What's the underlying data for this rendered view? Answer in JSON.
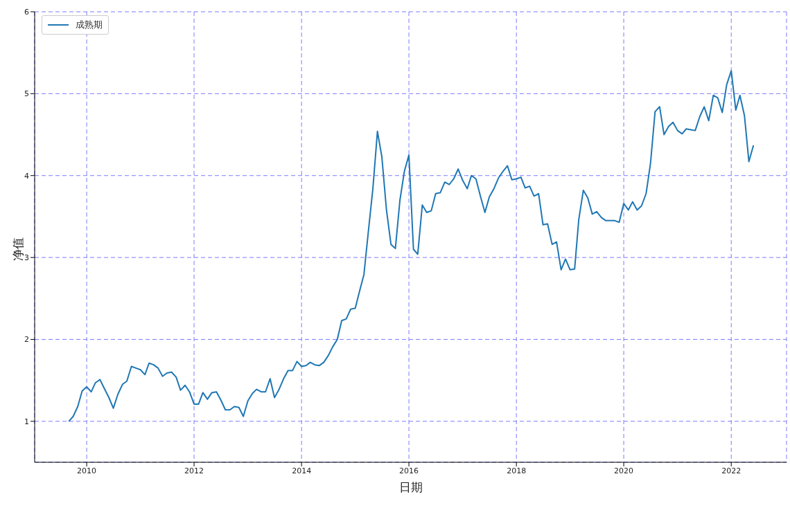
{
  "chart_data": {
    "type": "line",
    "xlabel": "日期",
    "ylabel": "净值",
    "x": [
      "2009-09",
      "2009-10",
      "2009-11",
      "2009-12",
      "2010-01",
      "2010-02",
      "2010-03",
      "2010-04",
      "2010-05",
      "2010-06",
      "2010-07",
      "2010-08",
      "2010-09",
      "2010-10",
      "2010-11",
      "2010-12",
      "2011-01",
      "2011-02",
      "2011-03",
      "2011-04",
      "2011-05",
      "2011-06",
      "2011-07",
      "2011-08",
      "2011-09",
      "2011-10",
      "2011-11",
      "2011-12",
      "2012-01",
      "2012-02",
      "2012-03",
      "2012-04",
      "2012-05",
      "2012-06",
      "2012-07",
      "2012-08",
      "2012-09",
      "2012-10",
      "2012-11",
      "2012-12",
      "2013-01",
      "2013-02",
      "2013-03",
      "2013-04",
      "2013-05",
      "2013-06",
      "2013-07",
      "2013-08",
      "2013-09",
      "2013-10",
      "2013-11",
      "2013-12",
      "2014-01",
      "2014-02",
      "2014-03",
      "2014-04",
      "2014-05",
      "2014-06",
      "2014-07",
      "2014-08",
      "2014-09",
      "2014-10",
      "2014-11",
      "2014-12",
      "2015-01",
      "2015-02",
      "2015-03",
      "2015-04",
      "2015-05",
      "2015-06",
      "2015-07",
      "2015-08",
      "2015-09",
      "2015-10",
      "2015-11",
      "2015-12",
      "2016-01",
      "2016-02",
      "2016-03",
      "2016-04",
      "2016-05",
      "2016-06",
      "2016-07",
      "2016-08",
      "2016-09",
      "2016-10",
      "2016-11",
      "2016-12",
      "2017-01",
      "2017-02",
      "2017-03",
      "2017-04",
      "2017-05",
      "2017-06",
      "2017-07",
      "2017-08",
      "2017-09",
      "2017-10",
      "2017-11",
      "2017-12",
      "2018-01",
      "2018-02",
      "2018-03",
      "2018-04",
      "2018-05",
      "2018-06",
      "2018-07",
      "2018-08",
      "2018-09",
      "2018-10",
      "2018-11",
      "2018-12",
      "2019-01",
      "2019-02",
      "2019-03",
      "2019-04",
      "2019-05",
      "2019-06",
      "2019-07",
      "2019-08",
      "2019-09",
      "2019-10",
      "2019-11",
      "2019-12",
      "2020-01",
      "2020-02",
      "2020-03",
      "2020-04",
      "2020-05",
      "2020-06",
      "2020-07",
      "2020-08",
      "2020-09",
      "2020-10",
      "2020-11",
      "2020-12",
      "2021-01",
      "2021-02",
      "2021-03",
      "2021-04",
      "2021-05",
      "2021-06",
      "2021-07",
      "2021-08",
      "2021-09",
      "2021-10",
      "2021-11",
      "2021-12",
      "2022-01",
      "2022-02",
      "2022-03",
      "2022-04",
      "2022-05",
      "2022-06"
    ],
    "series": [
      {
        "name": "成熟期",
        "color": "#1f77b4",
        "values": [
          1.0,
          1.06,
          1.18,
          1.37,
          1.42,
          1.36,
          1.47,
          1.51,
          1.4,
          1.29,
          1.16,
          1.33,
          1.45,
          1.49,
          1.67,
          1.65,
          1.63,
          1.57,
          1.71,
          1.69,
          1.65,
          1.55,
          1.59,
          1.6,
          1.54,
          1.38,
          1.44,
          1.36,
          1.21,
          1.21,
          1.35,
          1.27,
          1.35,
          1.36,
          1.26,
          1.14,
          1.14,
          1.18,
          1.17,
          1.06,
          1.25,
          1.34,
          1.39,
          1.36,
          1.36,
          1.52,
          1.29,
          1.39,
          1.52,
          1.62,
          1.62,
          1.73,
          1.67,
          1.68,
          1.72,
          1.69,
          1.68,
          1.72,
          1.8,
          1.91,
          2.0,
          2.23,
          2.25,
          2.37,
          2.38,
          2.6,
          2.79,
          3.33,
          3.84,
          4.54,
          4.23,
          3.59,
          3.16,
          3.11,
          3.7,
          4.05,
          4.25,
          3.1,
          3.04,
          3.64,
          3.55,
          3.57,
          3.78,
          3.79,
          3.92,
          3.89,
          3.96,
          4.08,
          3.94,
          3.84,
          4.0,
          3.96,
          3.75,
          3.55,
          3.74,
          3.84,
          3.97,
          4.05,
          4.12,
          3.95,
          3.96,
          3.98,
          3.85,
          3.87,
          3.75,
          3.78,
          3.4,
          3.41,
          3.16,
          3.19,
          2.85,
          2.98,
          2.85,
          2.86,
          3.46,
          3.82,
          3.73,
          3.53,
          3.56,
          3.49,
          3.45,
          3.45,
          3.45,
          3.43,
          3.66,
          3.58,
          3.68,
          3.58,
          3.63,
          3.78,
          4.15,
          4.78,
          4.84,
          4.5,
          4.6,
          4.65,
          4.55,
          4.51,
          4.57,
          4.56,
          4.55,
          4.72,
          4.84,
          4.67,
          4.98,
          4.95,
          4.77,
          5.11,
          5.28,
          4.8,
          4.98,
          4.73,
          4.17,
          4.37
        ]
      }
    ],
    "xlim": [
      "2009-01-12",
      "2023-01-12"
    ],
    "xticks": [
      "2010",
      "2012",
      "2014",
      "2016",
      "2018",
      "2020",
      "2022"
    ],
    "ylim": [
      0.5,
      6
    ],
    "yticks": [
      1,
      2,
      3,
      4,
      5,
      6
    ],
    "grid": true,
    "legend": "top left",
    "line_style": "solid",
    "marker": "none"
  }
}
